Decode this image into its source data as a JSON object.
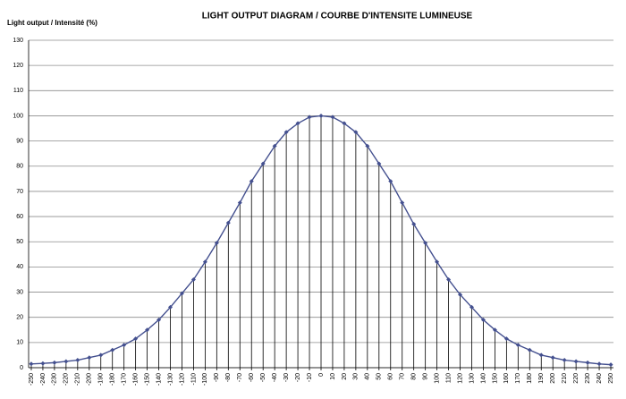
{
  "chart_data": {
    "type": "line",
    "title": "LIGHT OUTPUT DIAGRAM / COURBE D'INTENSITE LUMINEUSE",
    "y_label": "Light output / Intensité (%)",
    "x": [
      -250,
      -240,
      -230,
      -220,
      -210,
      -200,
      -190,
      -180,
      -170,
      -160,
      -150,
      -140,
      -130,
      -120,
      -110,
      -100,
      -90,
      -80,
      -70,
      -60,
      -50,
      -40,
      -30,
      -20,
      -10,
      0,
      10,
      20,
      30,
      40,
      50,
      60,
      70,
      80,
      90,
      100,
      110,
      120,
      130,
      140,
      150,
      160,
      170,
      180,
      190,
      200,
      210,
      220,
      230,
      240,
      250
    ],
    "series": [
      {
        "name": "Light output",
        "color": "#44508f",
        "values": [
          1.5,
          1.7,
          2,
          2.5,
          3,
          4,
          5,
          7,
          9,
          11.5,
          15,
          19,
          24,
          29.5,
          35,
          42,
          49.5,
          57.5,
          65.5,
          74,
          81,
          88,
          93.5,
          97,
          99.5,
          100,
          99.5,
          97,
          93.5,
          88,
          81,
          74,
          65.5,
          57,
          49.5,
          42,
          35,
          29,
          24,
          19,
          15,
          11.5,
          9,
          7,
          5,
          4,
          3,
          2.5,
          2,
          1.5,
          1.2
        ]
      }
    ],
    "xlim": [
      -252.3,
      252.3
    ],
    "xticks": [
      -250,
      -240,
      -230,
      -220,
      -210,
      -200,
      -190,
      -180,
      -170,
      -160,
      -150,
      -140,
      -130,
      -120,
      -110,
      -100,
      -90,
      -80,
      -70,
      -60,
      -50,
      -40,
      -30,
      -20,
      -10,
      0,
      10,
      20,
      30,
      40,
      50,
      60,
      70,
      80,
      90,
      100,
      110,
      120,
      130,
      140,
      150,
      160,
      170,
      180,
      190,
      200,
      210,
      220,
      230,
      240,
      250
    ],
    "ylim": [
      0,
      130
    ],
    "yticks": [
      0,
      10,
      20,
      30,
      40,
      50,
      60,
      70,
      80,
      90,
      100,
      110,
      120,
      130
    ],
    "grid": true,
    "drop_lines": true
  }
}
